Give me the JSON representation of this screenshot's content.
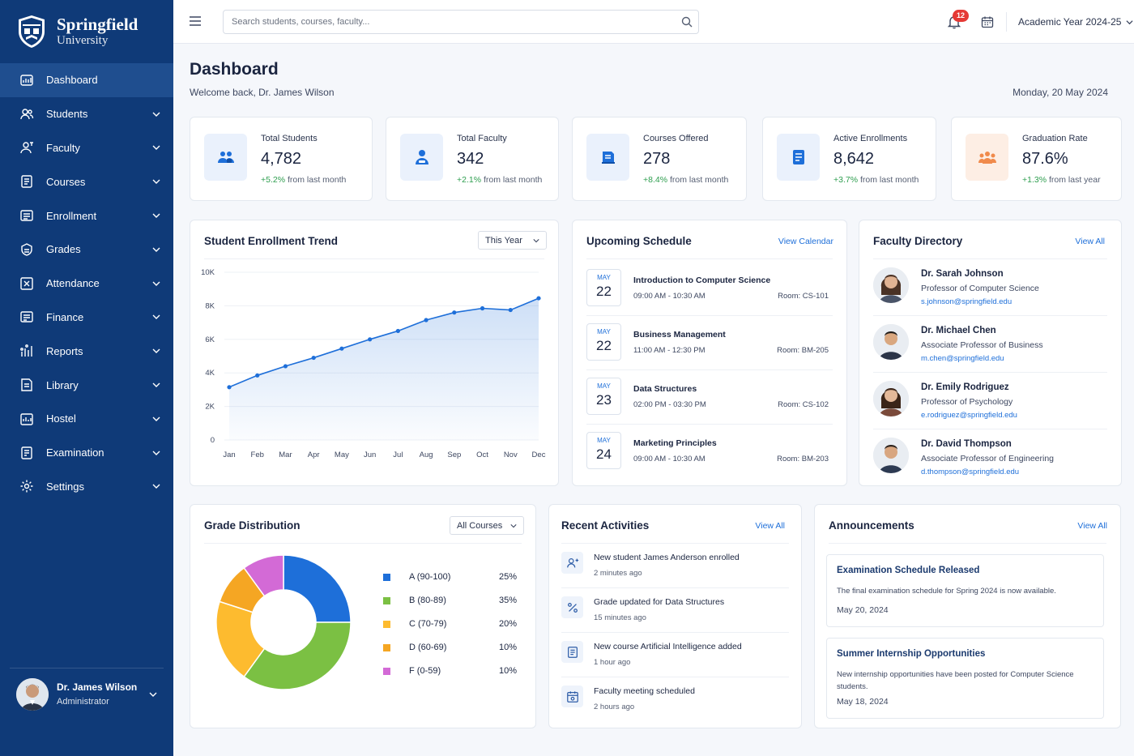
{
  "brand": {
    "name": "Springfield",
    "sub": "University"
  },
  "nav": [
    {
      "label": "Dashboard",
      "icon": "dashboard-icon"
    },
    {
      "label": "Students",
      "icon": "users-icon"
    },
    {
      "label": "Faculty",
      "icon": "faculty-icon"
    },
    {
      "label": "Courses",
      "icon": "courses-icon"
    },
    {
      "label": "Enrollment",
      "icon": "enrollment-icon"
    },
    {
      "label": "Grades",
      "icon": "grades-icon"
    },
    {
      "label": "Attendance",
      "icon": "attendance-icon"
    },
    {
      "label": "Finance",
      "icon": "finance-icon"
    },
    {
      "label": "Reports",
      "icon": "reports-icon"
    },
    {
      "label": "Library",
      "icon": "library-icon"
    },
    {
      "label": "Hostel",
      "icon": "hostel-icon"
    },
    {
      "label": "Examination",
      "icon": "examination-icon"
    },
    {
      "label": "Settings",
      "icon": "gear-icon"
    }
  ],
  "user": {
    "name": "Dr. James Wilson",
    "role": "Administrator"
  },
  "topbar": {
    "search_placeholder": "Search students, courses, faculty...",
    "notif_count": "12",
    "academic_year": "Academic Year 2024-25"
  },
  "header": {
    "title": "Dashboard",
    "welcome": "Welcome back, Dr. James Wilson",
    "date": "Monday, 20 May 2024"
  },
  "stats": [
    {
      "label": "Total Students",
      "value": "4,782",
      "change": "+5.2%",
      "suffix": " from last month"
    },
    {
      "label": "Total Faculty",
      "value": "342",
      "change": "+2.1%",
      "suffix": " from last month"
    },
    {
      "label": "Courses Offered",
      "value": "278",
      "change": "+8.4%",
      "suffix": " from last month"
    },
    {
      "label": "Active Enrollments",
      "value": "8,642",
      "change": "+3.7%",
      "suffix": " from last month"
    },
    {
      "label": "Graduation Rate",
      "value": "87.6%",
      "change": "+1.3%",
      "suffix": " from last year"
    }
  ],
  "enrollment": {
    "title": "Student Enrollment Trend",
    "filter": "This Year"
  },
  "chart_data": {
    "type": "area",
    "title": "Student Enrollment Trend",
    "x": [
      "Jan",
      "Feb",
      "Mar",
      "Apr",
      "May",
      "Jun",
      "Jul",
      "Aug",
      "Sep",
      "Oct",
      "Nov",
      "Dec"
    ],
    "values": [
      3150,
      3850,
      4400,
      4900,
      5450,
      6000,
      6500,
      7150,
      7600,
      7850,
      7750,
      8450
    ],
    "ylim": [
      0,
      10000
    ],
    "yticks": [
      "0",
      "2K",
      "4K",
      "6K",
      "8K",
      "10K"
    ],
    "grid": true,
    "color": "#1e6fd9"
  },
  "schedule": {
    "title": "Upcoming Schedule",
    "link": "View Calendar",
    "items": [
      {
        "month": "MAY",
        "day": "22",
        "title": "Introduction to Computer Science",
        "time": "09:00 AM - 10:30 AM",
        "room": "Room: CS-101"
      },
      {
        "month": "MAY",
        "day": "22",
        "title": "Business Management",
        "time": "11:00 AM - 12:30 PM",
        "room": "Room: BM-205"
      },
      {
        "month": "MAY",
        "day": "23",
        "title": "Data Structures",
        "time": "02:00 PM - 03:30 PM",
        "room": "Room: CS-102"
      },
      {
        "month": "MAY",
        "day": "24",
        "title": "Marketing Principles",
        "time": "09:00 AM - 10:30 AM",
        "room": "Room: BM-203"
      }
    ]
  },
  "faculty": {
    "title": "Faculty Directory",
    "link": "View All",
    "items": [
      {
        "name": "Dr. Sarah Johnson",
        "role": "Professor of Computer Science",
        "email": "s.johnson@springfield.edu"
      },
      {
        "name": "Dr. Michael Chen",
        "role": "Associate Professor of Business",
        "email": "m.chen@springfield.edu"
      },
      {
        "name": "Dr. Emily Rodriguez",
        "role": "Professor of Psychology",
        "email": "e.rodriguez@springfield.edu"
      },
      {
        "name": "Dr. David Thompson",
        "role": "Associate Professor of Engineering",
        "email": "d.thompson@springfield.edu"
      }
    ]
  },
  "grades": {
    "title": "Grade Distribution",
    "filter": "All Courses",
    "items": [
      {
        "label": "A (90-100)",
        "value": 25,
        "pct": "25%",
        "color": "#1e6fd9"
      },
      {
        "label": "B (80-89)",
        "value": 35,
        "pct": "35%",
        "color": "#7bc043"
      },
      {
        "label": "C (70-79)",
        "value": 20,
        "pct": "20%",
        "color": "#fdbb2f"
      },
      {
        "label": "D (60-69)",
        "value": 10,
        "pct": "10%",
        "color": "#f5a623"
      },
      {
        "label": "F (0-59)",
        "value": 10,
        "pct": "10%",
        "color": "#d36ad6"
      }
    ]
  },
  "activities": {
    "title": "Recent Activities",
    "link": "View All",
    "items": [
      {
        "text": "New student James Anderson enrolled",
        "time": "2 minutes ago",
        "icon": "user-add-icon"
      },
      {
        "text": "Grade updated for Data Structures",
        "time": "15 minutes ago",
        "icon": "percent-icon"
      },
      {
        "text": "New course Artificial Intelligence added",
        "time": "1 hour ago",
        "icon": "book-icon"
      },
      {
        "text": "Faculty meeting scheduled",
        "time": "2 hours ago",
        "icon": "calendar-icon"
      }
    ]
  },
  "announcements": {
    "title": "Announcements",
    "link": "View All",
    "items": [
      {
        "title": "Examination Schedule Released",
        "desc": "The final examination schedule for Spring 2024 is now available.",
        "date": "May 20, 2024"
      },
      {
        "title": "Summer Internship Opportunities",
        "desc": "New internship opportunities have been posted for Computer Science students.",
        "date": "May 18, 2024"
      }
    ]
  }
}
